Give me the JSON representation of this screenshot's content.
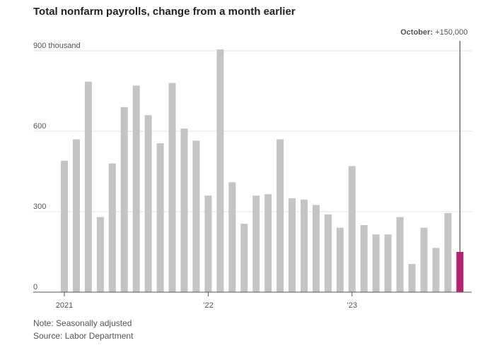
{
  "chart_data": {
    "type": "bar",
    "title": "Total nonfarm payrolls, change from a month earlier",
    "ylabel": "",
    "xlabel": "",
    "ylim": [
      0,
      900
    ],
    "y_ticks": [
      {
        "value": 0,
        "label": "0"
      },
      {
        "value": 300,
        "label": "300"
      },
      {
        "value": 600,
        "label": "600"
      },
      {
        "value": 900,
        "label": "900 thousand"
      }
    ],
    "x_tick_labels": [
      {
        "index": 0,
        "label": "2021"
      },
      {
        "index": 12,
        "label": "’22"
      },
      {
        "index": 24,
        "label": "’23"
      }
    ],
    "categories": [
      "Jan 2021",
      "Feb 2021",
      "Mar 2021",
      "Apr 2021",
      "May 2021",
      "Jun 2021",
      "Jul 2021",
      "Aug 2021",
      "Sep 2021",
      "Oct 2021",
      "Nov 2021",
      "Dec 2021",
      "Jan 2022",
      "Feb 2022",
      "Mar 2022",
      "Apr 2022",
      "May 2022",
      "Jun 2022",
      "Jul 2022",
      "Aug 2022",
      "Sep 2022",
      "Oct 2022",
      "Nov 2022",
      "Dec 2022",
      "Jan 2023",
      "Feb 2023",
      "Mar 2023",
      "Apr 2023",
      "May 2023",
      "Jun 2023",
      "Jul 2023",
      "Aug 2023",
      "Sep 2023",
      "Oct 2023"
    ],
    "values": [
      490,
      570,
      785,
      280,
      480,
      690,
      770,
      660,
      555,
      780,
      610,
      565,
      360,
      905,
      410,
      255,
      360,
      365,
      570,
      350,
      345,
      325,
      290,
      240,
      470,
      250,
      215,
      215,
      280,
      105,
      240,
      165,
      295,
      150
    ],
    "highlight_index": 33,
    "colors": {
      "bar": "#c4c4c4",
      "highlight": "#b5226d",
      "grid": "#e6e6e6",
      "axis": "#555555"
    },
    "callout": {
      "label": "October:",
      "value": "+150,000"
    },
    "grid": true
  },
  "notes": {
    "adjustment": "Note: Seasonally adjusted",
    "source": "Source: Labor Department"
  }
}
